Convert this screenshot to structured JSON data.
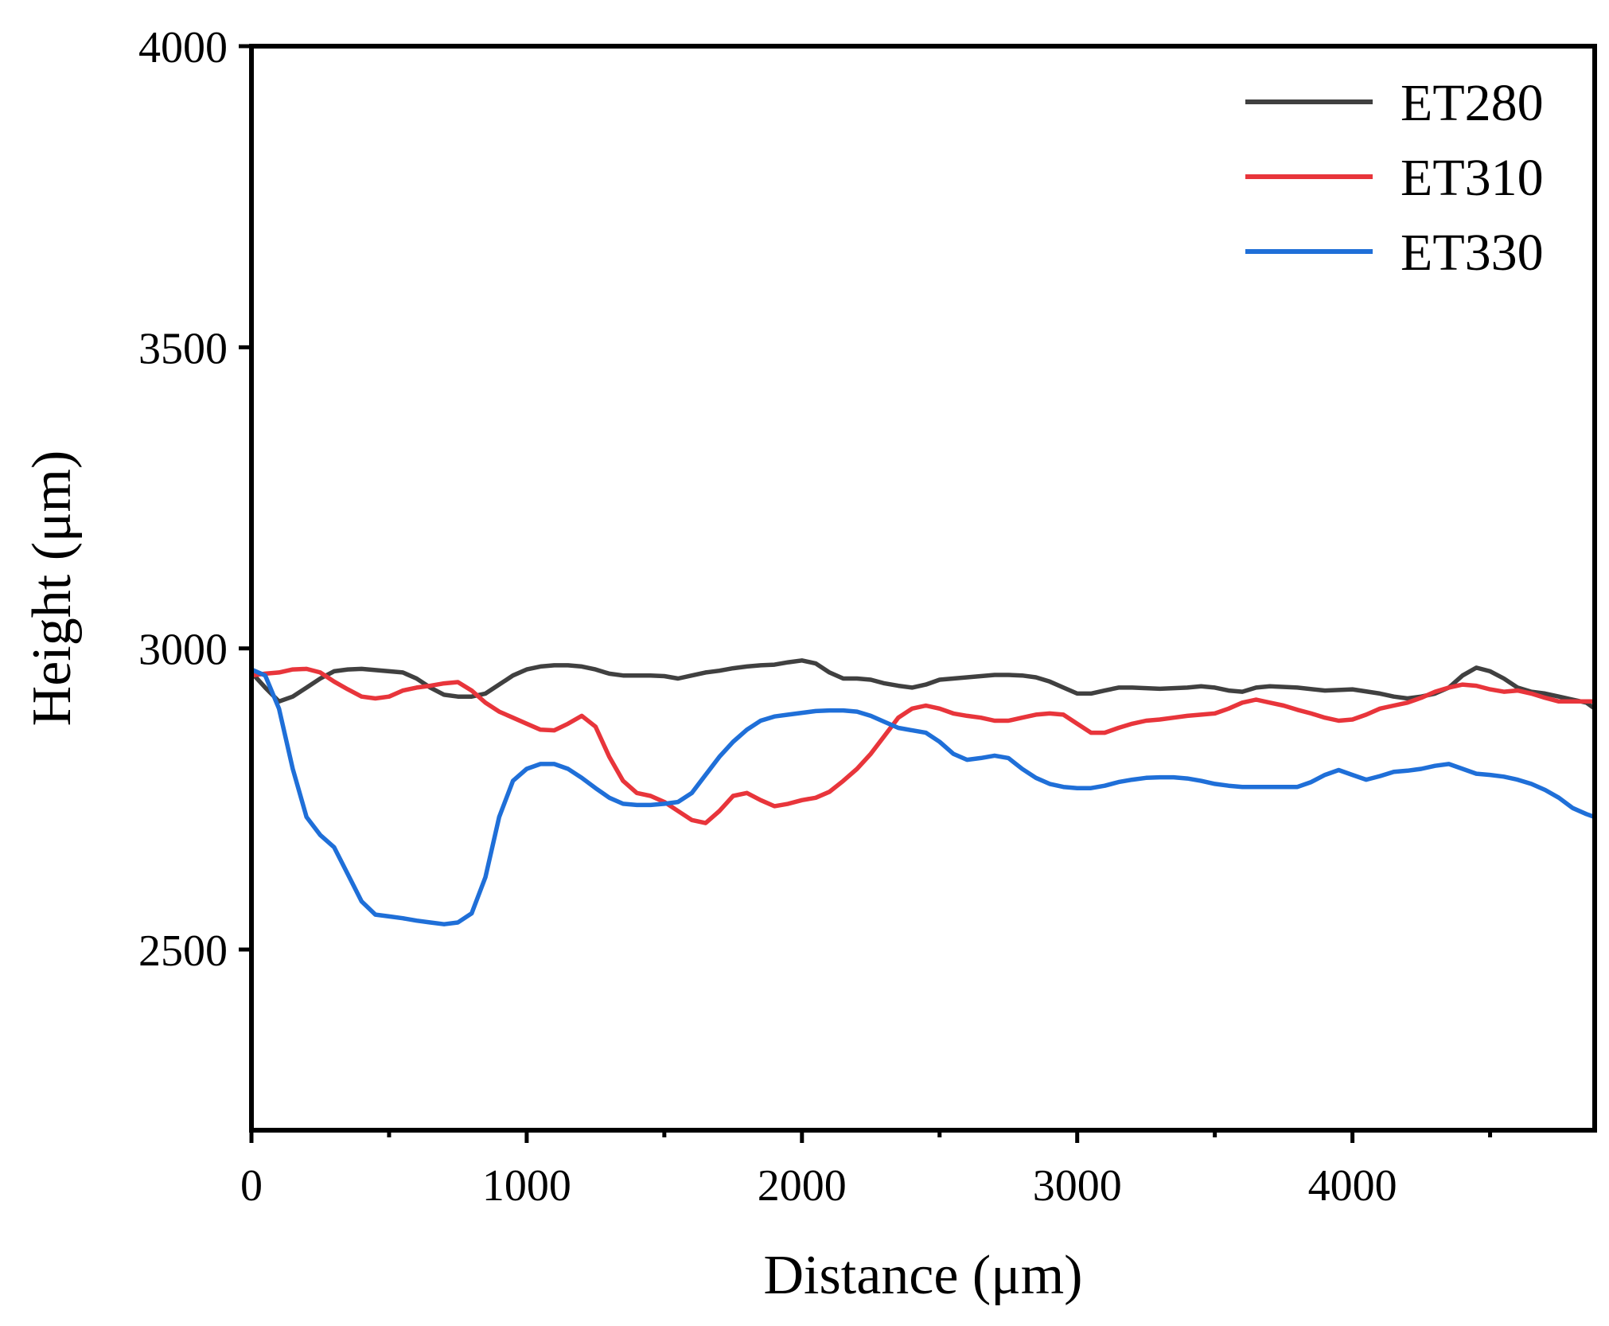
{
  "chart_data": {
    "type": "line",
    "title": "",
    "xlabel": "Distance (μm)",
    "ylabel": "Height (μm)",
    "xlim": [
      0,
      4880
    ],
    "ylim": [
      2200,
      4000
    ],
    "xticks": [
      0,
      1000,
      2000,
      3000,
      4000
    ],
    "xtick_labels": [
      "0",
      "1000",
      "2000",
      "3000",
      "4000"
    ],
    "xminor": [
      500,
      1500,
      2500,
      3500,
      4500
    ],
    "yticks": [
      2500,
      3000,
      3500,
      4000
    ],
    "ytick_labels": [
      "2500",
      "3000",
      "3500",
      "4000"
    ],
    "grid": false,
    "legend_position": "top-right",
    "series": [
      {
        "name": "ET280",
        "color": "#404040",
        "points": [
          [
            0,
            2960
          ],
          [
            50,
            2935
          ],
          [
            100,
            2912
          ],
          [
            150,
            2920
          ],
          [
            200,
            2935
          ],
          [
            250,
            2950
          ],
          [
            300,
            2962
          ],
          [
            350,
            2965
          ],
          [
            400,
            2966
          ],
          [
            450,
            2964
          ],
          [
            500,
            2962
          ],
          [
            550,
            2960
          ],
          [
            600,
            2950
          ],
          [
            650,
            2935
          ],
          [
            700,
            2923
          ],
          [
            750,
            2920
          ],
          [
            800,
            2920
          ],
          [
            850,
            2925
          ],
          [
            900,
            2940
          ],
          [
            950,
            2955
          ],
          [
            1000,
            2965
          ],
          [
            1050,
            2970
          ],
          [
            1100,
            2972
          ],
          [
            1150,
            2972
          ],
          [
            1200,
            2970
          ],
          [
            1250,
            2965
          ],
          [
            1300,
            2958
          ],
          [
            1350,
            2955
          ],
          [
            1400,
            2955
          ],
          [
            1450,
            2955
          ],
          [
            1500,
            2954
          ],
          [
            1550,
            2950
          ],
          [
            1600,
            2955
          ],
          [
            1650,
            2960
          ],
          [
            1700,
            2963
          ],
          [
            1750,
            2967
          ],
          [
            1800,
            2970
          ],
          [
            1850,
            2972
          ],
          [
            1900,
            2973
          ],
          [
            1950,
            2977
          ],
          [
            2000,
            2980
          ],
          [
            2050,
            2975
          ],
          [
            2100,
            2960
          ],
          [
            2150,
            2950
          ],
          [
            2200,
            2950
          ],
          [
            2250,
            2948
          ],
          [
            2300,
            2942
          ],
          [
            2350,
            2938
          ],
          [
            2400,
            2935
          ],
          [
            2450,
            2940
          ],
          [
            2500,
            2948
          ],
          [
            2550,
            2950
          ],
          [
            2600,
            2952
          ],
          [
            2650,
            2954
          ],
          [
            2700,
            2956
          ],
          [
            2750,
            2956
          ],
          [
            2800,
            2955
          ],
          [
            2850,
            2952
          ],
          [
            2900,
            2945
          ],
          [
            2950,
            2935
          ],
          [
            3000,
            2925
          ],
          [
            3050,
            2925
          ],
          [
            3100,
            2930
          ],
          [
            3150,
            2935
          ],
          [
            3200,
            2935
          ],
          [
            3300,
            2933
          ],
          [
            3400,
            2935
          ],
          [
            3450,
            2937
          ],
          [
            3500,
            2935
          ],
          [
            3550,
            2930
          ],
          [
            3600,
            2928
          ],
          [
            3650,
            2935
          ],
          [
            3700,
            2937
          ],
          [
            3800,
            2935
          ],
          [
            3900,
            2930
          ],
          [
            4000,
            2932
          ],
          [
            4100,
            2925
          ],
          [
            4150,
            2920
          ],
          [
            4200,
            2917
          ],
          [
            4250,
            2920
          ],
          [
            4300,
            2925
          ],
          [
            4350,
            2935
          ],
          [
            4400,
            2955
          ],
          [
            4450,
            2968
          ],
          [
            4500,
            2962
          ],
          [
            4550,
            2950
          ],
          [
            4600,
            2935
          ],
          [
            4650,
            2928
          ],
          [
            4700,
            2925
          ],
          [
            4750,
            2920
          ],
          [
            4800,
            2915
          ],
          [
            4850,
            2910
          ],
          [
            4880,
            2900
          ]
        ]
      },
      {
        "name": "ET310",
        "color": "#e8353b",
        "points": [
          [
            0,
            2955
          ],
          [
            50,
            2958
          ],
          [
            100,
            2960
          ],
          [
            150,
            2965
          ],
          [
            200,
            2966
          ],
          [
            250,
            2960
          ],
          [
            300,
            2945
          ],
          [
            350,
            2932
          ],
          [
            400,
            2920
          ],
          [
            450,
            2917
          ],
          [
            500,
            2920
          ],
          [
            550,
            2930
          ],
          [
            600,
            2935
          ],
          [
            650,
            2938
          ],
          [
            700,
            2942
          ],
          [
            750,
            2944
          ],
          [
            800,
            2930
          ],
          [
            850,
            2910
          ],
          [
            900,
            2895
          ],
          [
            950,
            2885
          ],
          [
            1000,
            2875
          ],
          [
            1050,
            2865
          ],
          [
            1100,
            2864
          ],
          [
            1150,
            2875
          ],
          [
            1200,
            2888
          ],
          [
            1250,
            2870
          ],
          [
            1300,
            2820
          ],
          [
            1350,
            2780
          ],
          [
            1400,
            2760
          ],
          [
            1450,
            2755
          ],
          [
            1500,
            2745
          ],
          [
            1550,
            2730
          ],
          [
            1600,
            2715
          ],
          [
            1650,
            2710
          ],
          [
            1700,
            2730
          ],
          [
            1750,
            2755
          ],
          [
            1800,
            2760
          ],
          [
            1850,
            2748
          ],
          [
            1900,
            2738
          ],
          [
            1950,
            2742
          ],
          [
            2000,
            2748
          ],
          [
            2050,
            2752
          ],
          [
            2100,
            2762
          ],
          [
            2150,
            2780
          ],
          [
            2200,
            2800
          ],
          [
            2250,
            2825
          ],
          [
            2300,
            2855
          ],
          [
            2350,
            2885
          ],
          [
            2400,
            2900
          ],
          [
            2450,
            2905
          ],
          [
            2500,
            2900
          ],
          [
            2550,
            2892
          ],
          [
            2600,
            2888
          ],
          [
            2650,
            2885
          ],
          [
            2700,
            2880
          ],
          [
            2750,
            2880
          ],
          [
            2800,
            2885
          ],
          [
            2850,
            2890
          ],
          [
            2900,
            2892
          ],
          [
            2950,
            2890
          ],
          [
            3000,
            2875
          ],
          [
            3050,
            2860
          ],
          [
            3100,
            2860
          ],
          [
            3150,
            2868
          ],
          [
            3200,
            2875
          ],
          [
            3250,
            2880
          ],
          [
            3300,
            2882
          ],
          [
            3350,
            2885
          ],
          [
            3400,
            2888
          ],
          [
            3450,
            2890
          ],
          [
            3500,
            2892
          ],
          [
            3550,
            2900
          ],
          [
            3600,
            2910
          ],
          [
            3650,
            2915
          ],
          [
            3700,
            2910
          ],
          [
            3750,
            2905
          ],
          [
            3800,
            2898
          ],
          [
            3850,
            2892
          ],
          [
            3900,
            2885
          ],
          [
            3950,
            2880
          ],
          [
            4000,
            2882
          ],
          [
            4050,
            2890
          ],
          [
            4100,
            2900
          ],
          [
            4150,
            2905
          ],
          [
            4200,
            2910
          ],
          [
            4250,
            2918
          ],
          [
            4300,
            2928
          ],
          [
            4350,
            2935
          ],
          [
            4400,
            2940
          ],
          [
            4450,
            2938
          ],
          [
            4500,
            2932
          ],
          [
            4550,
            2928
          ],
          [
            4600,
            2930
          ],
          [
            4650,
            2925
          ],
          [
            4700,
            2918
          ],
          [
            4750,
            2912
          ],
          [
            4800,
            2912
          ],
          [
            4850,
            2912
          ],
          [
            4880,
            2912
          ]
        ]
      },
      {
        "name": "ET330",
        "color": "#1f6fd8",
        "points": [
          [
            0,
            2965
          ],
          [
            50,
            2955
          ],
          [
            100,
            2900
          ],
          [
            150,
            2800
          ],
          [
            200,
            2720
          ],
          [
            250,
            2690
          ],
          [
            300,
            2670
          ],
          [
            350,
            2625
          ],
          [
            400,
            2580
          ],
          [
            450,
            2558
          ],
          [
            500,
            2555
          ],
          [
            550,
            2552
          ],
          [
            600,
            2548
          ],
          [
            650,
            2545
          ],
          [
            700,
            2542
          ],
          [
            750,
            2545
          ],
          [
            800,
            2560
          ],
          [
            850,
            2620
          ],
          [
            900,
            2720
          ],
          [
            950,
            2780
          ],
          [
            1000,
            2800
          ],
          [
            1050,
            2808
          ],
          [
            1100,
            2808
          ],
          [
            1150,
            2800
          ],
          [
            1200,
            2785
          ],
          [
            1250,
            2768
          ],
          [
            1300,
            2752
          ],
          [
            1350,
            2742
          ],
          [
            1400,
            2740
          ],
          [
            1450,
            2740
          ],
          [
            1500,
            2742
          ],
          [
            1550,
            2745
          ],
          [
            1600,
            2760
          ],
          [
            1650,
            2790
          ],
          [
            1700,
            2820
          ],
          [
            1750,
            2845
          ],
          [
            1800,
            2865
          ],
          [
            1850,
            2880
          ],
          [
            1900,
            2887
          ],
          [
            1950,
            2890
          ],
          [
            2000,
            2893
          ],
          [
            2050,
            2896
          ],
          [
            2100,
            2897
          ],
          [
            2150,
            2897
          ],
          [
            2200,
            2895
          ],
          [
            2250,
            2888
          ],
          [
            2300,
            2878
          ],
          [
            2350,
            2868
          ],
          [
            2400,
            2864
          ],
          [
            2450,
            2860
          ],
          [
            2500,
            2845
          ],
          [
            2550,
            2825
          ],
          [
            2600,
            2815
          ],
          [
            2650,
            2818
          ],
          [
            2700,
            2822
          ],
          [
            2750,
            2818
          ],
          [
            2800,
            2800
          ],
          [
            2850,
            2785
          ],
          [
            2900,
            2775
          ],
          [
            2950,
            2770
          ],
          [
            3000,
            2768
          ],
          [
            3050,
            2768
          ],
          [
            3100,
            2772
          ],
          [
            3150,
            2778
          ],
          [
            3200,
            2782
          ],
          [
            3250,
            2785
          ],
          [
            3300,
            2786
          ],
          [
            3350,
            2786
          ],
          [
            3400,
            2784
          ],
          [
            3450,
            2780
          ],
          [
            3500,
            2775
          ],
          [
            3550,
            2772
          ],
          [
            3600,
            2770
          ],
          [
            3650,
            2770
          ],
          [
            3700,
            2770
          ],
          [
            3750,
            2770
          ],
          [
            3800,
            2770
          ],
          [
            3850,
            2778
          ],
          [
            3900,
            2790
          ],
          [
            3950,
            2798
          ],
          [
            4000,
            2790
          ],
          [
            4050,
            2782
          ],
          [
            4100,
            2788
          ],
          [
            4150,
            2795
          ],
          [
            4200,
            2797
          ],
          [
            4250,
            2800
          ],
          [
            4300,
            2805
          ],
          [
            4350,
            2808
          ],
          [
            4400,
            2800
          ],
          [
            4450,
            2792
          ],
          [
            4500,
            2790
          ],
          [
            4550,
            2787
          ],
          [
            4600,
            2782
          ],
          [
            4650,
            2775
          ],
          [
            4700,
            2765
          ],
          [
            4750,
            2752
          ],
          [
            4800,
            2735
          ],
          [
            4850,
            2725
          ],
          [
            4880,
            2720
          ]
        ]
      }
    ]
  }
}
